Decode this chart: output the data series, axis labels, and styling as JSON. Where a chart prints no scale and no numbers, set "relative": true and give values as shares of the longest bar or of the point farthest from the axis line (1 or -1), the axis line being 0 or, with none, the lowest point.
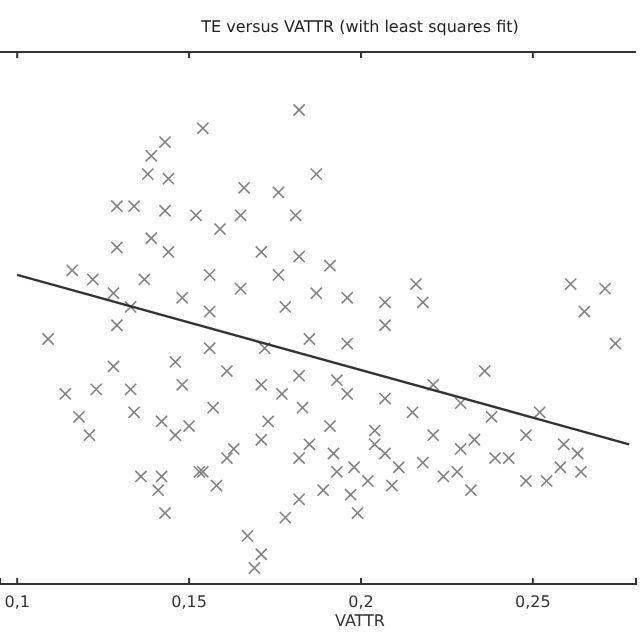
{
  "chart_data": {
    "type": "scatter",
    "title": "TE versus VATTR (with least squares fit)",
    "xlabel": "VATTR",
    "relative": true,
    "grid": false,
    "xlim": [
      0.095,
      0.28
    ],
    "xticks": [
      {
        "value": 0.1,
        "label": "0,1"
      },
      {
        "value": 0.15,
        "label": "0,15"
      },
      {
        "value": 0.2,
        "label": "0,2"
      },
      {
        "value": 0.25,
        "label": "0,25"
      }
    ],
    "series": [
      {
        "marker": "cross",
        "color": "#808080",
        "x": [
          0.182,
          0.154,
          0.143,
          0.139,
          0.138,
          0.144,
          0.187,
          0.166,
          0.176,
          0.129,
          0.134,
          0.143,
          0.152,
          0.165,
          0.181,
          0.159,
          0.139,
          0.129,
          0.144,
          0.171,
          0.182,
          0.191,
          0.116,
          0.122,
          0.156,
          0.137,
          0.176,
          0.216,
          0.261,
          0.271,
          0.128,
          0.148,
          0.165,
          0.187,
          0.196,
          0.207,
          0.218,
          0.265,
          0.133,
          0.156,
          0.178,
          0.109,
          0.274,
          0.129,
          0.156,
          0.172,
          0.185,
          0.196,
          0.207,
          0.128,
          0.146,
          0.161,
          0.182,
          0.193,
          0.236,
          0.114,
          0.123,
          0.133,
          0.148,
          0.171,
          0.177,
          0.196,
          0.207,
          0.221,
          0.229,
          0.118,
          0.134,
          0.157,
          0.183,
          0.215,
          0.252,
          0.121,
          0.142,
          0.15,
          0.173,
          0.191,
          0.204,
          0.238,
          0.146,
          0.171,
          0.185,
          0.204,
          0.221,
          0.233,
          0.248,
          0.259,
          0.163,
          0.192,
          0.207,
          0.229,
          0.243,
          0.161,
          0.182,
          0.198,
          0.218,
          0.263,
          0.153,
          0.193,
          0.211,
          0.228,
          0.239,
          0.258,
          0.136,
          0.154,
          0.202,
          0.224,
          0.248,
          0.254,
          0.264,
          0.142,
          0.158,
          0.189,
          0.209,
          0.232,
          0.141,
          0.182,
          0.197,
          0.143,
          0.178,
          0.199,
          0.167,
          0.171,
          0.169
        ],
        "values": [
          1.0,
          0.96,
          0.93,
          0.9,
          0.86,
          0.85,
          0.86,
          0.83,
          0.82,
          0.79,
          0.79,
          0.78,
          0.77,
          0.77,
          0.77,
          0.74,
          0.72,
          0.7,
          0.69,
          0.69,
          0.68,
          0.66,
          0.65,
          0.63,
          0.64,
          0.63,
          0.64,
          0.62,
          0.62,
          0.61,
          0.6,
          0.59,
          0.61,
          0.6,
          0.59,
          0.58,
          0.58,
          0.56,
          0.57,
          0.56,
          0.57,
          0.5,
          0.49,
          0.53,
          0.48,
          0.48,
          0.5,
          0.49,
          0.53,
          0.44,
          0.45,
          0.43,
          0.42,
          0.41,
          0.43,
          0.38,
          0.39,
          0.39,
          0.4,
          0.4,
          0.38,
          0.38,
          0.37,
          0.4,
          0.36,
          0.33,
          0.34,
          0.35,
          0.35,
          0.34,
          0.34,
          0.29,
          0.32,
          0.31,
          0.32,
          0.31,
          0.3,
          0.33,
          0.29,
          0.28,
          0.27,
          0.27,
          0.29,
          0.28,
          0.29,
          0.27,
          0.26,
          0.25,
          0.25,
          0.26,
          0.24,
          0.24,
          0.24,
          0.22,
          0.23,
          0.25,
          0.21,
          0.21,
          0.22,
          0.21,
          0.24,
          0.22,
          0.2,
          0.21,
          0.19,
          0.2,
          0.19,
          0.19,
          0.21,
          0.2,
          0.18,
          0.17,
          0.18,
          0.17,
          0.17,
          0.15,
          0.16,
          0.12,
          0.11,
          0.12,
          0.07,
          0.03,
          0.0
        ]
      },
      {
        "type": "line",
        "color": "#333333",
        "line_style": "solid",
        "marker": "none",
        "x": [
          0.1,
          0.278
        ],
        "values": [
          0.64,
          0.27
        ]
      }
    ]
  }
}
